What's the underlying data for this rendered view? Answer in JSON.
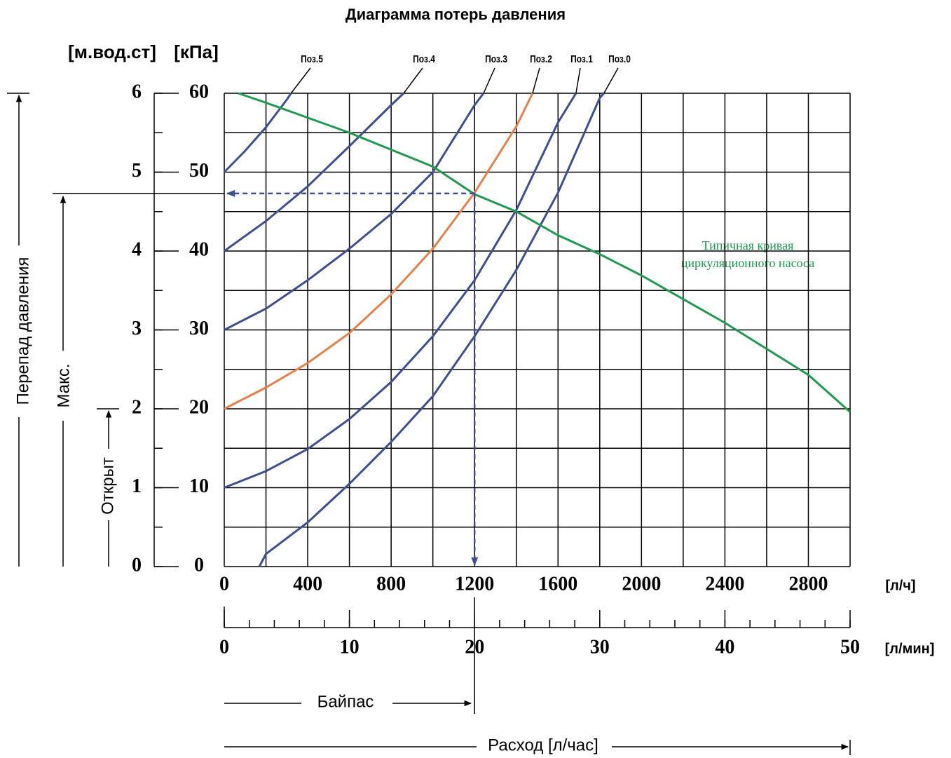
{
  "chart_data": {
    "type": "line",
    "title": "Диаграмма потерь давления",
    "y_unit": "[кПа]",
    "y2_unit": "[м.вод.ст]",
    "x_unit": "[л/ч]",
    "x2_unit": "[л/мин]",
    "y_axis_label": "Перепад давления",
    "max_label": "Макс.",
    "open_label": "Открыт",
    "bypass_label": "Байпас",
    "flow_label": "Расход [л/час]",
    "pump_label": [
      "Типичная кривая",
      "циркуляционного насоса"
    ],
    "xlim": [
      0,
      3000
    ],
    "xticks": [
      0,
      400,
      800,
      1200,
      1600,
      2000,
      2400,
      2800
    ],
    "x2lim": [
      0,
      50
    ],
    "x2ticks": [
      0,
      10,
      20,
      30,
      40,
      50
    ],
    "ylim": [
      0,
      60
    ],
    "yticks": [
      0,
      10,
      20,
      30,
      40,
      50,
      60
    ],
    "y2lim": [
      0,
      6
    ],
    "y2ticks": [
      0,
      1,
      2,
      3,
      4,
      5,
      6
    ],
    "grid": true,
    "operating_point": {
      "x": 1200,
      "y": 47.3
    },
    "series": [
      {
        "name": "Поз.5",
        "color": "#3d4f8f",
        "x": [
          0,
          100,
          200,
          300,
          320
        ],
        "values": [
          50,
          52.7,
          55.7,
          59.2,
          60
        ]
      },
      {
        "name": "Поз.4",
        "color": "#3d4f8f",
        "x": [
          0,
          200,
          400,
          600,
          800,
          860
        ],
        "values": [
          40,
          43.8,
          48.2,
          53.3,
          58.5,
          60
        ]
      },
      {
        "name": "Поз.3",
        "color": "#3d4f8f",
        "x": [
          0,
          200,
          400,
          600,
          800,
          1000,
          1200,
          1243
        ],
        "values": [
          30,
          32.7,
          36.3,
          40.3,
          44.7,
          50,
          58.5,
          60
        ]
      },
      {
        "name": "Поз.2",
        "color": "#e8804a",
        "x": [
          0,
          200,
          400,
          600,
          800,
          1000,
          1200,
          1400,
          1478
        ],
        "values": [
          20,
          22.7,
          25.8,
          29.6,
          34.5,
          40.3,
          47.4,
          55.8,
          60
        ]
      },
      {
        "name": "Поз.1",
        "color": "#3d4f8f",
        "x": [
          0,
          200,
          400,
          600,
          800,
          1000,
          1200,
          1400,
          1600,
          1686
        ],
        "values": [
          10,
          12.1,
          14.9,
          18.7,
          23.4,
          29.2,
          36.3,
          45.2,
          56.3,
          60
        ]
      },
      {
        "name": "Поз.0",
        "color": "#3d4f8f",
        "x": [
          168,
          200,
          400,
          600,
          800,
          1000,
          1200,
          1400,
          1600,
          1800,
          1820
        ],
        "values": [
          0,
          1.6,
          5.6,
          10.5,
          15.8,
          21.6,
          29.2,
          37.6,
          47.4,
          59.4,
          60
        ]
      },
      {
        "color": "#1f9a4f",
        "x": [
          67,
          200,
          400,
          600,
          1000,
          1200,
          1400,
          1600,
          1800,
          2000,
          2400,
          2800,
          3000
        ],
        "values": [
          60,
          58.8,
          56.9,
          55,
          50.7,
          47.2,
          45,
          42,
          39.6,
          36.9,
          30.9,
          24.3,
          19.6
        ]
      }
    ]
  }
}
